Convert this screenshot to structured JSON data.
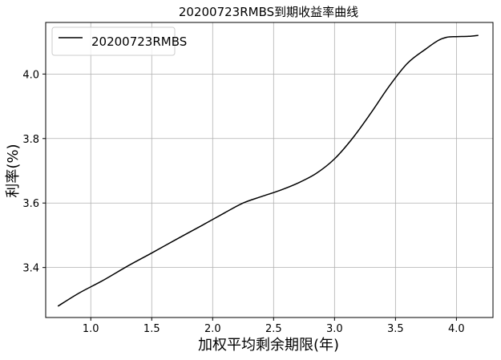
{
  "chart_data": {
    "type": "line",
    "title": "20200723RMBS到期收益率曲线",
    "xlabel": "加权平均剩余期限(年)",
    "ylabel": "利率(%)",
    "xlim": [
      0.63,
      4.3
    ],
    "ylim": [
      3.245,
      4.16
    ],
    "x_ticks": [
      1.0,
      1.5,
      2.0,
      2.5,
      3.0,
      3.5,
      4.0
    ],
    "x_tick_labels": [
      "1.0",
      "1.5",
      "2.0",
      "2.5",
      "3.0",
      "3.5",
      "4.0"
    ],
    "y_ticks": [
      3.4,
      3.6,
      3.8,
      4.0
    ],
    "y_tick_labels": [
      "3.4",
      "3.6",
      "3.8",
      "4.0"
    ],
    "grid": true,
    "legend_position": "top-left",
    "series": [
      {
        "name": "20200723RMBS",
        "color": "#000000",
        "x": [
          0.73,
          0.9,
          1.1,
          1.3,
          1.5,
          1.7,
          1.9,
          2.1,
          2.25,
          2.4,
          2.55,
          2.7,
          2.85,
          3.0,
          3.15,
          3.3,
          3.45,
          3.6,
          3.75,
          3.85,
          3.92,
          4.0,
          4.1,
          4.18
        ],
        "y": [
          3.28,
          3.32,
          3.36,
          3.404,
          3.445,
          3.487,
          3.528,
          3.57,
          3.6,
          3.62,
          3.639,
          3.662,
          3.692,
          3.737,
          3.802,
          3.88,
          3.963,
          4.034,
          4.078,
          4.104,
          4.114,
          4.116,
          4.117,
          4.12
        ]
      }
    ]
  }
}
